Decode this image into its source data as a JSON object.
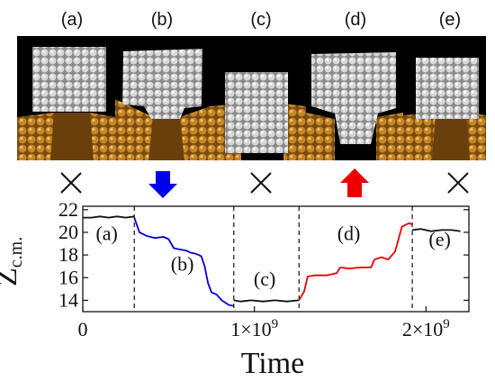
{
  "snapshots": {
    "panel_labels": [
      "(a)",
      "(b)",
      "(c)",
      "(d)",
      "(e)"
    ],
    "indicators": [
      {
        "symbol": "cross-icon"
      },
      {
        "symbol": "down-arrow-icon",
        "color": "#0000ee"
      },
      {
        "symbol": "cross-icon"
      },
      {
        "symbol": "up-arrow-icon",
        "color": "#ee0000"
      },
      {
        "symbol": "cross-icon"
      }
    ],
    "colors": {
      "background": "#000000",
      "cluster": "#d9d9d9",
      "substrate": "#b8741f"
    }
  },
  "chart_data": {
    "type": "line",
    "title": "",
    "xlabel": "Time",
    "ylabel_main": "Z",
    "ylabel_sub": "c.m.",
    "xlim": [
      0,
      2250000000.0
    ],
    "ylim": [
      13,
      22.3
    ],
    "xticks": [
      0,
      1000000000.0,
      2000000000.0
    ],
    "xtick_labels": [
      "0",
      "1×10^9",
      "2×10^9"
    ],
    "xtick_base": [
      "0",
      "1×10",
      "2×10"
    ],
    "xtick_exp": [
      "",
      "9",
      "9"
    ],
    "yticks": [
      14,
      16,
      18,
      20,
      22
    ],
    "ytick_labels": [
      "14",
      "16",
      "18",
      "20",
      "22"
    ],
    "region_boundaries": [
      300000000.0,
      880000000.0,
      1260000000.0,
      1920000000.0
    ],
    "region_labels": [
      {
        "text": "(a)",
        "x": 140000000.0,
        "y": 19.3
      },
      {
        "text": "(b)",
        "x": 580000000.0,
        "y": 16.6
      },
      {
        "text": "(c)",
        "x": 1060000000.0,
        "y": 15.3
      },
      {
        "text": "(d)",
        "x": 1550000000.0,
        "y": 19.3
      },
      {
        "text": "(e)",
        "x": 2080000000.0,
        "y": 18.8
      }
    ],
    "series": [
      {
        "color": "#111111",
        "x": [
          0,
          50000000.0,
          100000000.0,
          150000000.0,
          200000000.0,
          250000000.0,
          300000000.0
        ],
        "y": [
          21.3,
          21.3,
          21.4,
          21.3,
          21.4,
          21.3,
          21.4
        ]
      },
      {
        "color": "#0000dd",
        "x": [
          300000000.0,
          330000000.0,
          370000000.0,
          420000000.0,
          470000000.0,
          500000000.0,
          530000000.0,
          560000000.0,
          600000000.0,
          630000000.0,
          660000000.0,
          690000000.0,
          710000000.0,
          730000000.0,
          750000000.0,
          780000000.0,
          810000000.0,
          850000000.0,
          880000000.0
        ],
        "y": [
          21.3,
          20.0,
          19.7,
          19.5,
          19.6,
          19.4,
          18.6,
          18.5,
          18.4,
          18.2,
          18.1,
          17.9,
          17.0,
          15.5,
          14.7,
          14.5,
          14.0,
          13.6,
          13.5
        ]
      },
      {
        "color": "#111111",
        "x": [
          880000000.0,
          920000000.0,
          980000000.0,
          1050000000.0,
          1120000000.0,
          1190000000.0,
          1260000000.0
        ],
        "y": [
          14.0,
          13.9,
          14.0,
          13.9,
          14.0,
          13.9,
          14.0
        ]
      },
      {
        "color": "#ee0000",
        "x": [
          1260000000.0,
          1290000000.0,
          1310000000.0,
          1350000000.0,
          1420000000.0,
          1480000000.0,
          1500000000.0,
          1550000000.0,
          1620000000.0,
          1680000000.0,
          1700000000.0,
          1740000000.0,
          1780000000.0,
          1820000000.0,
          1860000000.0,
          1900000000.0,
          1920000000.0
        ],
        "y": [
          14.0,
          14.8,
          16.1,
          16.2,
          16.2,
          16.4,
          16.9,
          16.8,
          16.9,
          16.9,
          17.6,
          17.8,
          17.6,
          18.3,
          20.5,
          20.8,
          20.7
        ]
      },
      {
        "color": "#111111",
        "x": [
          1920000000.0,
          1970000000.0,
          2030000000.0,
          2090000000.0,
          2150000000.0,
          2200000000.0
        ],
        "y": [
          20.2,
          20.3,
          20.1,
          20.2,
          20.2,
          20.1
        ]
      }
    ]
  }
}
